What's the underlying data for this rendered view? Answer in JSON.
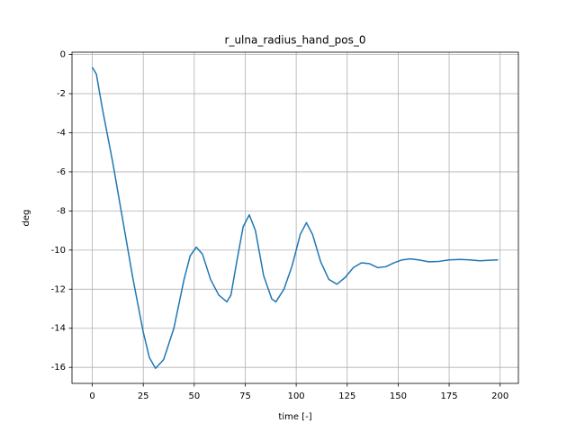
{
  "chart_data": {
    "type": "line",
    "title": "r_ulna_radius_hand_pos_0",
    "x_label": "time [-]",
    "y_label": "deg",
    "x": [
      0,
      2,
      5,
      10,
      15,
      20,
      25,
      28,
      31,
      35,
      40,
      45,
      48,
      51,
      54,
      58,
      62,
      66,
      68,
      71,
      74,
      77,
      80,
      84,
      88,
      90,
      94,
      98,
      102,
      105,
      108,
      112,
      116,
      120,
      124,
      128,
      132,
      136,
      140,
      144,
      148,
      152,
      156,
      160,
      165,
      170,
      175,
      180,
      185,
      190,
      195,
      199
    ],
    "series": [
      {
        "color": "#1f77b4",
        "values": [
          -0.65,
          -1.0,
          -2.8,
          -5.5,
          -8.5,
          -11.5,
          -14.2,
          -15.5,
          -16.05,
          -15.6,
          -14.0,
          -11.5,
          -10.3,
          -9.85,
          -10.2,
          -11.5,
          -12.3,
          -12.65,
          -12.3,
          -10.5,
          -8.8,
          -8.2,
          -9.0,
          -11.3,
          -12.5,
          -12.65,
          -12.0,
          -10.8,
          -9.2,
          -8.6,
          -9.2,
          -10.6,
          -11.5,
          -11.75,
          -11.4,
          -10.9,
          -10.65,
          -10.7,
          -10.9,
          -10.85,
          -10.65,
          -10.5,
          -10.45,
          -10.5,
          -10.6,
          -10.58,
          -10.5,
          -10.48,
          -10.5,
          -10.55,
          -10.52,
          -10.5
        ]
      }
    ],
    "xlim": [
      -9.95,
      208.95
    ],
    "ylim": [
      -16.82,
      0.12
    ],
    "xticks": [
      0,
      25,
      50,
      75,
      100,
      125,
      150,
      175,
      200
    ],
    "yticks": [
      0,
      -2,
      -4,
      -6,
      -8,
      -10,
      -12,
      -14,
      -16
    ],
    "grid": true
  }
}
